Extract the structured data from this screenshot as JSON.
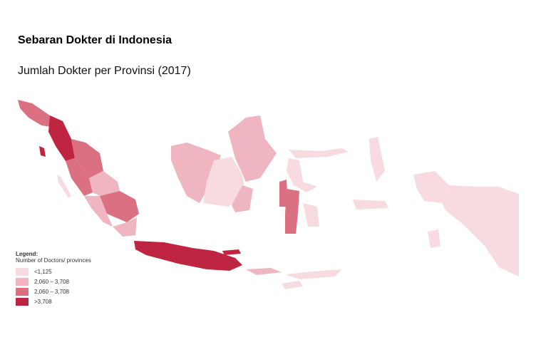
{
  "title": "Sebaran Dokter di Indonesia",
  "subtitle": "Jumlah Dokter per Provinsi (2017)",
  "legend": {
    "title": "Legend:",
    "subtitle": "Number of Doctors/ provinces",
    "items": [
      {
        "label": "<1,125",
        "color": "#f8dbe0"
      },
      {
        "label": "2,060 – 3,708",
        "color": "#efb6c1"
      },
      {
        "label": "2,060 – 3,708",
        "color": "#dc7083"
      },
      {
        "label": ">3,708",
        "color": "#bf2440"
      }
    ]
  }
}
